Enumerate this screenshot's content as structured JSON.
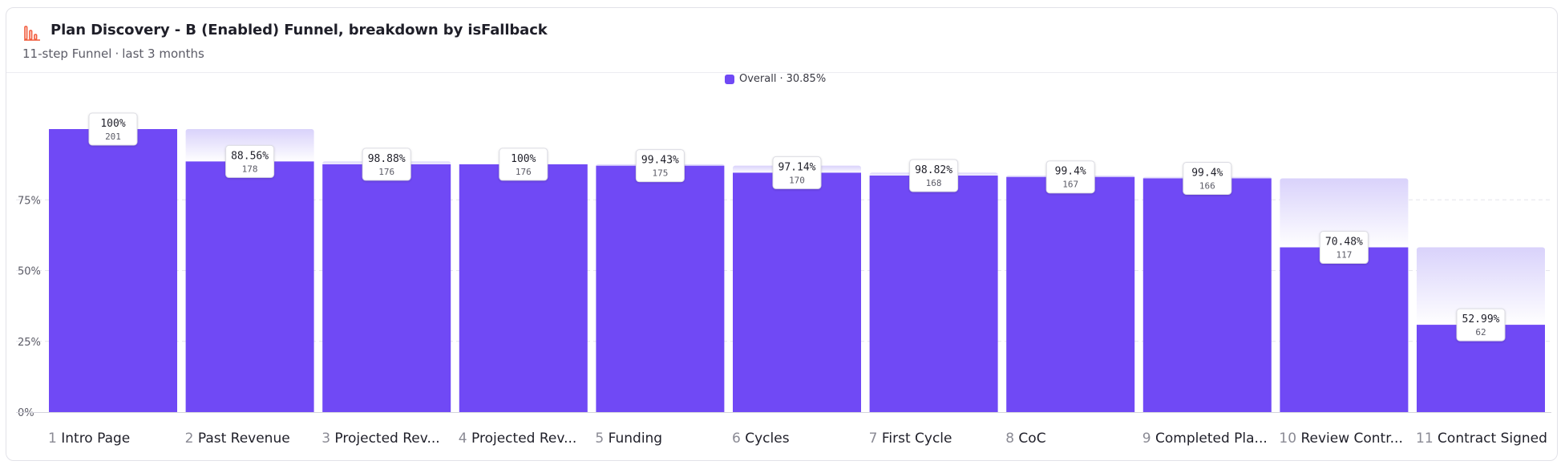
{
  "header": {
    "title": "Plan Discovery - B (Enabled) Funnel, breakdown by isFallback",
    "subtitle_type": "11-step Funnel",
    "subtitle_range": "last 3 months",
    "icon": "bar-chart-icon",
    "icon_color": "#f15a3a"
  },
  "legend": {
    "label": "Overall",
    "value": "30.85%",
    "color": "#7049f5"
  },
  "chart_data": {
    "type": "bar",
    "title": "Plan Discovery - B (Enabled) Funnel, breakdown by isFallback",
    "xlabel": "",
    "ylabel": "",
    "ylim": [
      0,
      100
    ],
    "yticks": [
      "0%",
      "25%",
      "50%",
      "75%"
    ],
    "grid": true,
    "legend_position": "top-center",
    "categories": [
      {
        "num": "1",
        "label": "Intro Page"
      },
      {
        "num": "2",
        "label": "Past Revenue"
      },
      {
        "num": "3",
        "label": "Projected Rev..."
      },
      {
        "num": "4",
        "label": "Projected Rev..."
      },
      {
        "num": "5",
        "label": "Funding"
      },
      {
        "num": "6",
        "label": "Cycles"
      },
      {
        "num": "7",
        "label": "First Cycle"
      },
      {
        "num": "8",
        "label": "CoC"
      },
      {
        "num": "9",
        "label": "Completed Pla..."
      },
      {
        "num": "10",
        "label": "Review Contr..."
      },
      {
        "num": "11",
        "label": "Contract Signed"
      }
    ],
    "series": [
      {
        "name": "Overall",
        "color": "#7049f5",
        "conversion_of_total": [
          100,
          88.56,
          87.56,
          87.56,
          87.06,
          84.58,
          83.58,
          83.08,
          82.59,
          58.21,
          30.85
        ],
        "step_conversion_labels": [
          "100%",
          "88.56%",
          "98.88%",
          "100%",
          "99.43%",
          "97.14%",
          "98.82%",
          "99.4%",
          "99.4%",
          "70.48%",
          "52.99%"
        ],
        "counts": [
          "201",
          "178",
          "176",
          "176",
          "175",
          "170",
          "168",
          "167",
          "166",
          "117",
          "62"
        ]
      }
    ]
  }
}
